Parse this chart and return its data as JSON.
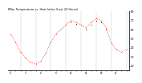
{
  "title": "Milw. Temperature vs. Heat Index (Last 24 Hours)",
  "hours": [
    0,
    1,
    2,
    3,
    4,
    5,
    6,
    7,
    8,
    9,
    10,
    11,
    12,
    13,
    14,
    15,
    16,
    17,
    18,
    19,
    20,
    21,
    22,
    23
  ],
  "temp": [
    55,
    46,
    35,
    28,
    24,
    22,
    25,
    34,
    46,
    55,
    60,
    65,
    70,
    68,
    65,
    62,
    68,
    72,
    70,
    62,
    45,
    38,
    35,
    38
  ],
  "heat_index": [
    null,
    null,
    null,
    null,
    null,
    null,
    null,
    null,
    null,
    null,
    null,
    null,
    68,
    66,
    null,
    60,
    65,
    70,
    68,
    60,
    null,
    null,
    null,
    null
  ],
  "temp_color": "#ff0000",
  "heat_color": "#000000",
  "ylim": [
    15,
    80
  ],
  "yticks": [
    20,
    30,
    40,
    50,
    60,
    70,
    80
  ],
  "ytick_labels": [
    "20",
    "30",
    "40",
    "50",
    "60",
    "70",
    "80"
  ],
  "background_color": "#ffffff",
  "grid_color": "#888888",
  "grid_x_positions": [
    2,
    5,
    8,
    11,
    14,
    17,
    20,
    23
  ]
}
